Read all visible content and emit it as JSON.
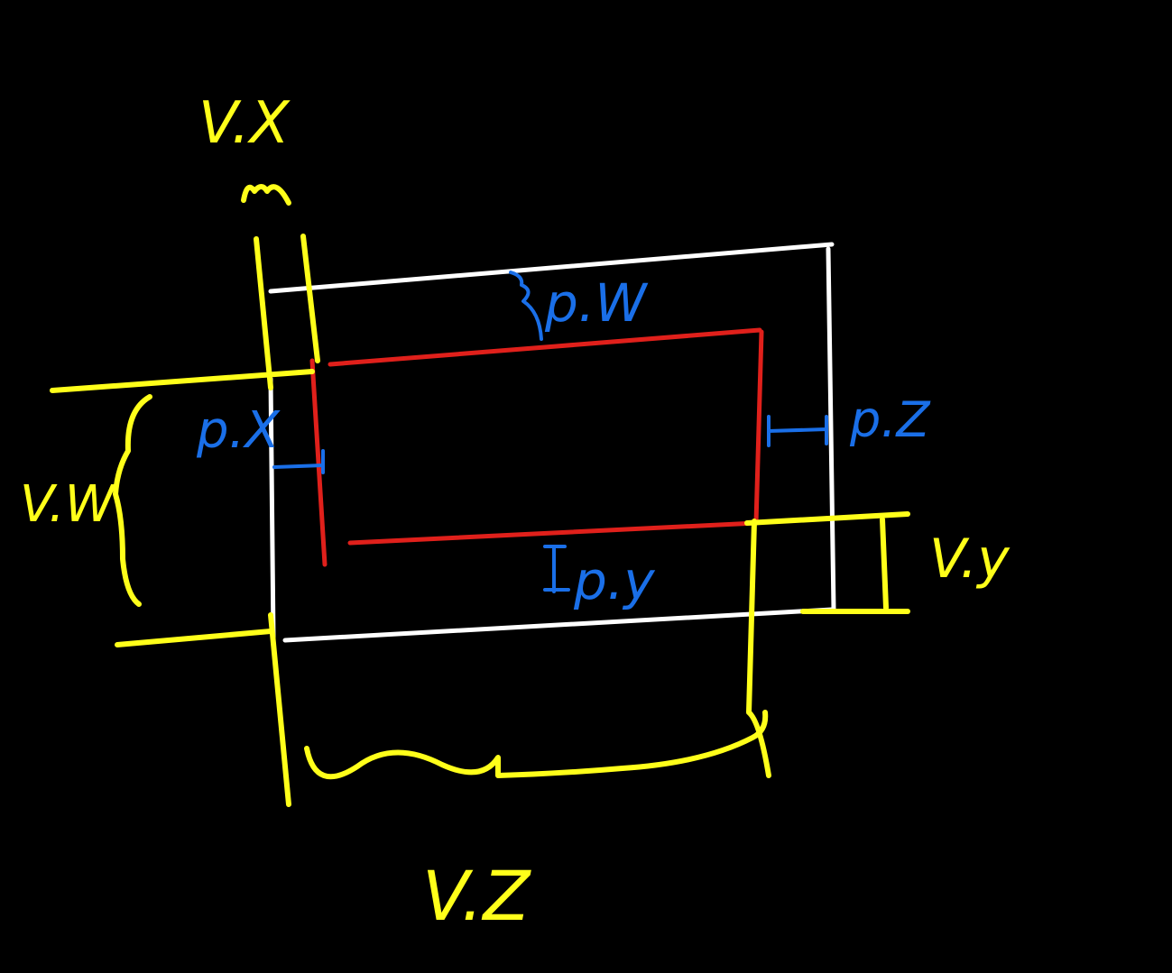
{
  "colors": {
    "background": "#000000",
    "outer_rect": "#ffffff",
    "inner_rect": "#e0201b",
    "view_dimensions": "#ffff1a",
    "padding_dimensions": "#1a6fe8"
  },
  "labels": {
    "v_x": "V.X",
    "v_y": "V.y",
    "v_z": "V.Z",
    "v_w": "V.W",
    "p_x": "p.X",
    "p_y": "p.y",
    "p_z": "p.Z",
    "p_w": "p.W"
  }
}
